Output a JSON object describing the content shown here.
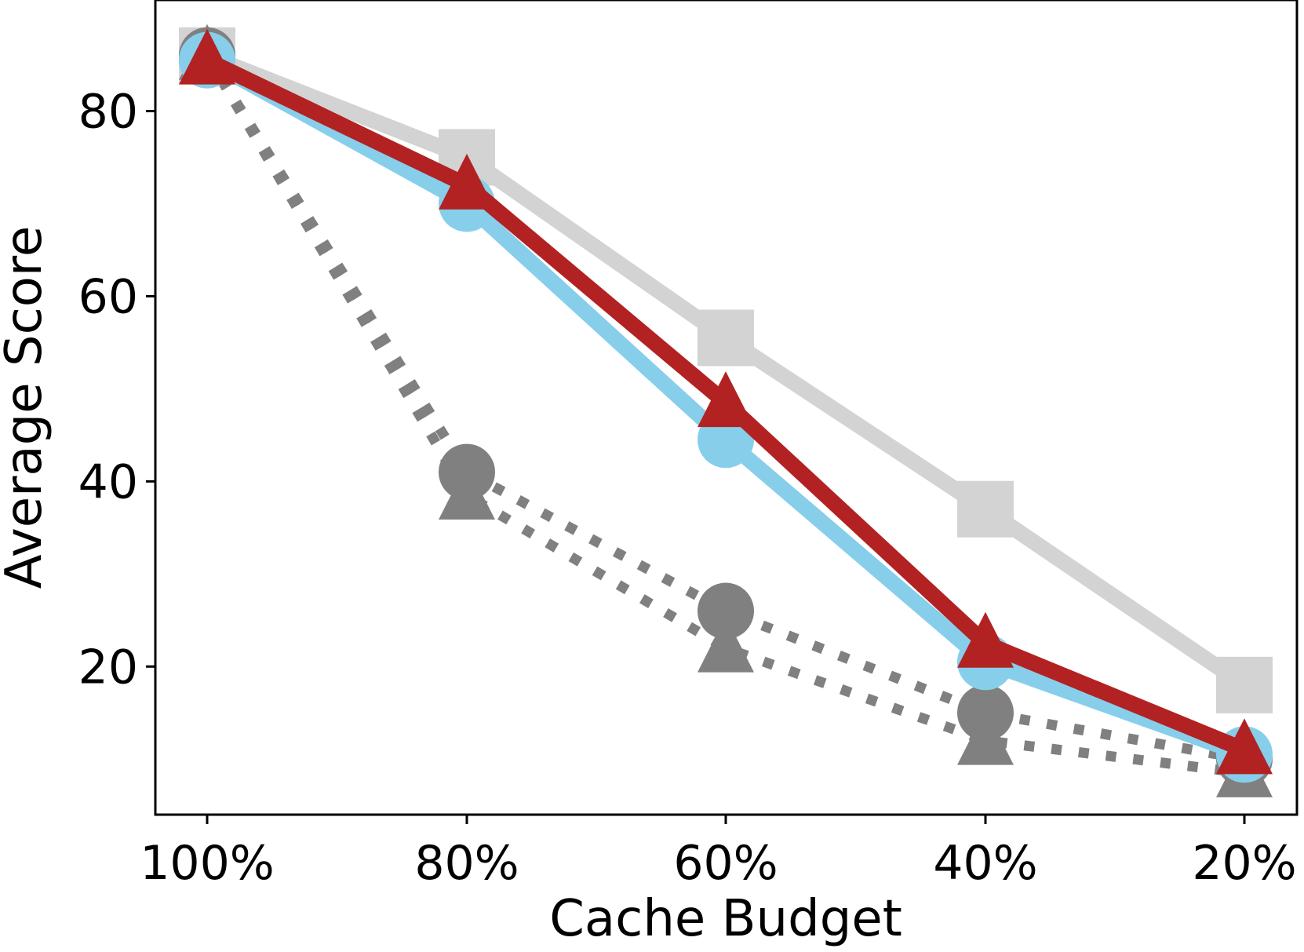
{
  "chart_data": {
    "type": "line",
    "title": "",
    "xlabel": "Cache Budget",
    "ylabel": "Average Score",
    "categories": [
      "100%",
      "80%",
      "60%",
      "40%",
      "20%"
    ],
    "ylim": [
      4,
      92
    ],
    "yticks": [
      20,
      40,
      60,
      80
    ],
    "grid": false,
    "legend": "none",
    "series": [
      {
        "color": "#d3d3d3",
        "marker": "square",
        "linestyle": "solid",
        "values": [
          86,
          75,
          55.5,
          37,
          18
        ]
      },
      {
        "color": "#808080",
        "marker": "triangle",
        "linestyle": "dotted",
        "values": [
          86,
          38.5,
          22,
          12,
          8.5
        ]
      },
      {
        "color": "#808080",
        "marker": "circle",
        "linestyle": "dotted",
        "values": [
          86,
          41,
          26,
          15,
          10
        ]
      },
      {
        "color": "#87ceeb",
        "marker": "circle",
        "linestyle": "solid",
        "values": [
          85.5,
          70,
          44.5,
          20.5,
          10.5
        ]
      },
      {
        "color": "#b22222",
        "marker": "triangle",
        "linestyle": "solid",
        "values": [
          85.5,
          72,
          48.5,
          22.5,
          11
        ]
      }
    ]
  }
}
